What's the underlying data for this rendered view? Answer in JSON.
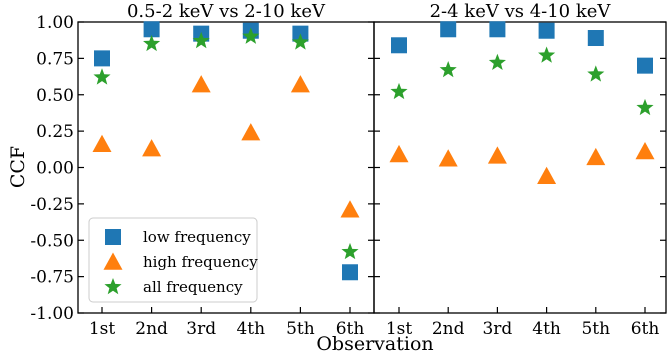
{
  "chart_data": {
    "type": "scatter",
    "xlabel": "Observation",
    "ylabel": "CCF",
    "categories": [
      "1st",
      "2nd",
      "3rd",
      "4th",
      "5th",
      "6th"
    ],
    "ylim": [
      -1.0,
      1.0
    ],
    "yticks": [
      "1.00",
      "0.75",
      "0.50",
      "0.25",
      "0.00",
      "-0.25",
      "-0.50",
      "-0.75",
      "-1.00"
    ],
    "ytick_values": [
      1.0,
      0.75,
      0.5,
      0.25,
      0.0,
      -0.25,
      -0.5,
      -0.75,
      -1.0
    ],
    "grid": false,
    "legend_placement": "bottom-left",
    "legend": [
      {
        "name": "low frequency",
        "marker": "square",
        "color": "#1f77b4"
      },
      {
        "name": "high frequency",
        "marker": "triangle",
        "color": "#ff7f0e"
      },
      {
        "name": "all frequency",
        "marker": "star",
        "color": "#2ca02c"
      }
    ],
    "panels": [
      {
        "title": "0.5-2 keV vs 2-10 keV",
        "series": [
          {
            "name": "low frequency",
            "marker": "square",
            "color": "#1f77b4",
            "values": [
              0.75,
              0.95,
              0.92,
              0.94,
              0.92,
              -0.72
            ]
          },
          {
            "name": "high frequency",
            "marker": "triangle",
            "color": "#ff7f0e",
            "values": [
              0.16,
              0.13,
              0.57,
              0.24,
              0.57,
              -0.29
            ]
          },
          {
            "name": "all frequency",
            "marker": "star",
            "color": "#2ca02c",
            "values": [
              0.62,
              0.85,
              0.87,
              0.9,
              0.86,
              -0.58
            ]
          }
        ]
      },
      {
        "title": "2-4 keV vs 4-10 keV",
        "series": [
          {
            "name": "low frequency",
            "marker": "square",
            "color": "#1f77b4",
            "values": [
              0.84,
              0.95,
              0.95,
              0.94,
              0.89,
              0.7
            ]
          },
          {
            "name": "high frequency",
            "marker": "triangle",
            "color": "#ff7f0e",
            "values": [
              0.09,
              0.06,
              0.08,
              -0.06,
              0.07,
              0.11
            ]
          },
          {
            "name": "all frequency",
            "marker": "star",
            "color": "#2ca02c",
            "values": [
              0.52,
              0.67,
              0.72,
              0.77,
              0.64,
              0.41
            ]
          }
        ]
      }
    ]
  }
}
